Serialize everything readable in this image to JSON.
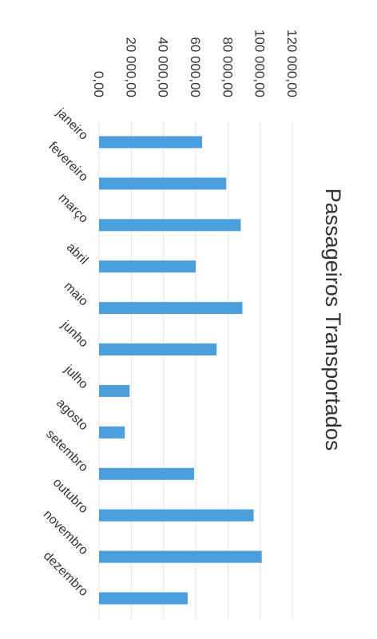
{
  "chart_data": {
    "type": "bar",
    "title": "Passageiros Transportados",
    "categories": [
      "janeiro",
      "fevereiro",
      "março",
      "abril",
      "maio",
      "junho",
      "julho",
      "agosto",
      "setembro",
      "outubro",
      "novembro",
      "dezembro"
    ],
    "values": [
      64000,
      79000,
      88000,
      60000,
      89000,
      73000,
      19000,
      16000,
      59000,
      96000,
      101000,
      55000
    ],
    "yticks": [
      "0,00",
      "20 000,00",
      "40 000,00",
      "60 000,00",
      "80 000,00",
      "100 000,00",
      "120 000,00"
    ],
    "ylim": [
      0,
      120000
    ],
    "grid": true,
    "legend": "none",
    "orientation": "rotated 90° clockwise",
    "bar_color": "#4a9fdc",
    "grid_color": "#e6e6e6",
    "text_color": "#333333"
  }
}
